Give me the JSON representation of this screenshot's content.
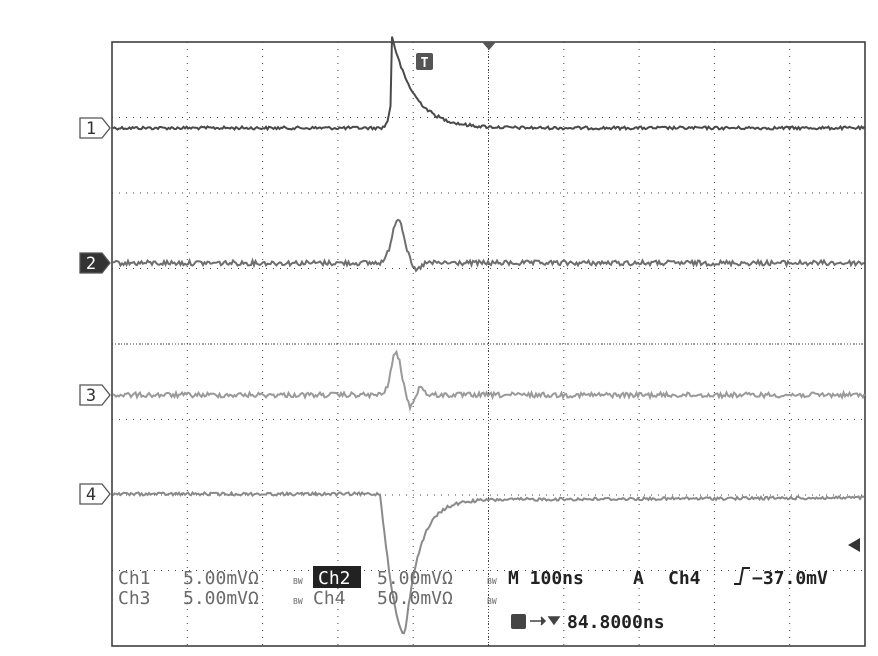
{
  "markers": {
    "trigger": "T",
    "channels": [
      "1",
      "2",
      "3",
      "4"
    ]
  },
  "status": {
    "ch1_label": "Ch1",
    "ch1_scale": "5.00mVΩ",
    "ch2_label": "Ch2",
    "ch2_scale": "5.00mVΩ",
    "bw": "BW",
    "timebase": "M 100ns",
    "acquire": "A",
    "trigger_source": "Ch4",
    "trigger_level": "−37.0mV",
    "ch3_label": "Ch3",
    "ch3_scale": "5.00mVΩ",
    "ch4_label": "Ch4",
    "ch4_scale": "50.0mVΩ",
    "trigger_delay": "84.8000ns"
  }
}
